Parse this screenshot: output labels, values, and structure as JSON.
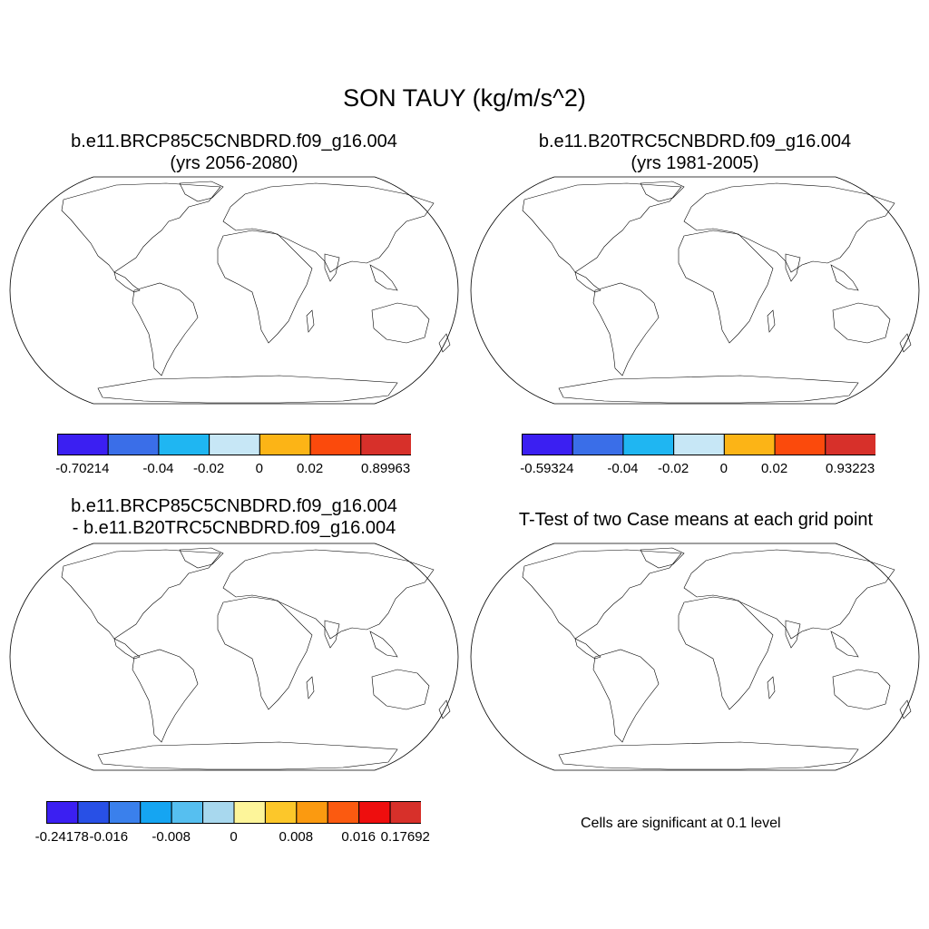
{
  "figure": {
    "title": "SON TAUY (kg/m/s^2)"
  },
  "panels": [
    {
      "title_line1": "b.e11.BRCP85C5CNBDRD.f09_g16.004",
      "title_line2": "(yrs 2056-2080)",
      "colorbar": {
        "colors": [
          "#3b1ff2",
          "#3a6ee8",
          "#1fb6f2",
          "#c7e7f6",
          "#fcb416",
          "#fb4a0c",
          "#d7302a"
        ],
        "labels": [
          "-0.70214",
          "-0.04",
          "-0.02",
          "0",
          "0.02",
          "0.89963"
        ]
      }
    },
    {
      "title_line1": "b.e11.B20TRC5CNBDRD.f09_g16.004",
      "title_line2": "(yrs 1981-2005)",
      "colorbar": {
        "colors": [
          "#3b1ff2",
          "#3a6ee8",
          "#1fb6f2",
          "#c7e7f6",
          "#fcb416",
          "#fb4a0c",
          "#d7302a"
        ],
        "labels": [
          "-0.59324",
          "-0.04",
          "-0.02",
          "0",
          "0.02",
          "0.93223"
        ]
      }
    },
    {
      "title_line1": "b.e11.BRCP85C5CNBDRD.f09_g16.004",
      "title_line2": "- b.e11.B20TRC5CNBDRD.f09_g16.004",
      "colorbar": {
        "colors": [
          "#3b1ff2",
          "#2850e6",
          "#3a80ec",
          "#15a5f2",
          "#56bff0",
          "#a8d8ee",
          "#fdf59a",
          "#fcc72a",
          "#fb9a10",
          "#fb5a10",
          "#ee0e0e",
          "#d7302a"
        ],
        "labels": [
          "-0.24178",
          "-0.016",
          "-0.008",
          "0",
          "0.008",
          "0.016",
          "0.17692"
        ]
      }
    },
    {
      "title_line1": "T-Test of two Case means at each grid point",
      "note": "Cells are significant at 0.1 level"
    }
  ],
  "colors": {
    "land_outline": "#000000",
    "significant": "#f00000"
  }
}
